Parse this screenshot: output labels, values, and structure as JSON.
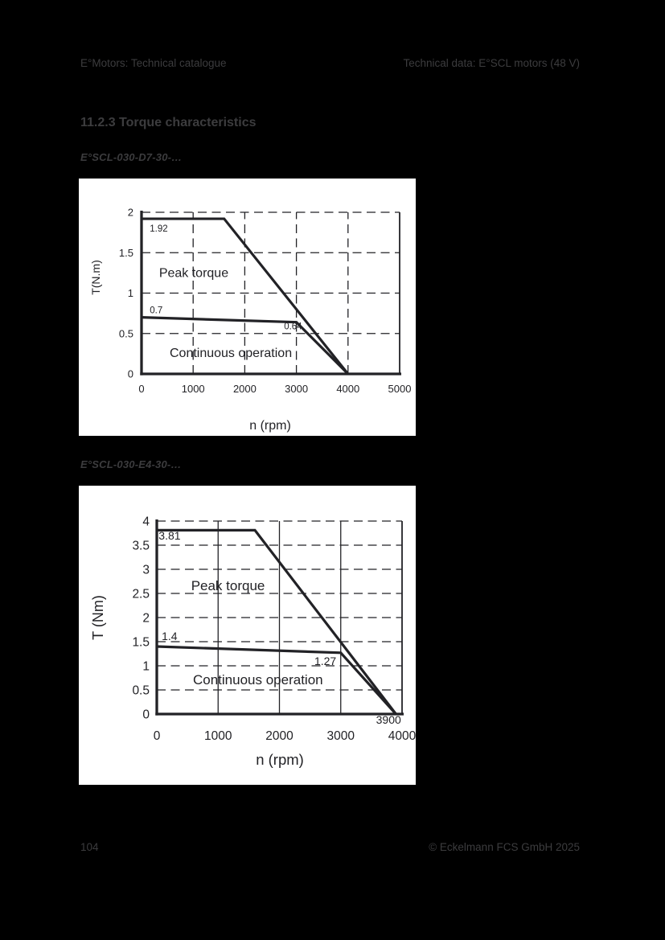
{
  "page": {
    "background": "#000000",
    "text_color": "#3c3c3e",
    "header": {
      "left": "E°Motors: Technical catalogue",
      "right": "Technical data: E°SCL motors (48 V)"
    },
    "section_title": "11.2.3 Torque characteristics",
    "footer": {
      "page_number": "104",
      "copyright": "© Eckelmann FCS GmbH 2025"
    }
  },
  "figures": [
    {
      "caption": "E°SCL-030-D7-30-…"
    },
    {
      "caption": "E°SCL-030-E4-30-…"
    }
  ],
  "chart_data": [
    {
      "type": "line",
      "title": "",
      "xlabel": "n (rpm)",
      "ylabel": "T(N.m)",
      "xlim": [
        0,
        5000
      ],
      "ylim": [
        0,
        2
      ],
      "xticks": [
        0,
        1000,
        2000,
        3000,
        4000,
        5000
      ],
      "yticks": [
        0,
        0.5,
        1,
        1.5,
        2
      ],
      "grid": {
        "horizontal": "dashed",
        "vertical": "dashed"
      },
      "legend": "none",
      "line_color": "#222226",
      "plot_background": "#ffffff",
      "series": [
        {
          "name": "Peak torque",
          "points": [
            [
              0,
              1.92
            ],
            [
              1600,
              1.92
            ],
            [
              4000,
              0
            ]
          ]
        },
        {
          "name": "Continuous operation",
          "points": [
            [
              0,
              0.7
            ],
            [
              3000,
              0.64
            ],
            [
              4000,
              0
            ]
          ]
        }
      ],
      "annotations": [
        {
          "text": "1.92",
          "x": 160,
          "y": 1.76,
          "anchor": "start",
          "size": "small"
        },
        {
          "text": "0.7",
          "x": 160,
          "y": 0.75,
          "anchor": "start",
          "size": "small"
        },
        {
          "text": "0.64",
          "x": 2760,
          "y": 0.55,
          "anchor": "start",
          "size": "small"
        },
        {
          "text": "Peak torque",
          "x": 340,
          "y": 1.2,
          "anchor": "start",
          "size": "large"
        },
        {
          "text": "Continuous operation",
          "x": 545,
          "y": 0.21,
          "anchor": "start",
          "size": "large"
        }
      ]
    },
    {
      "type": "line",
      "title": "",
      "xlabel": "n (rpm)",
      "ylabel": "T (Nm)",
      "xlim": [
        0,
        4000
      ],
      "ylim": [
        0,
        4
      ],
      "xticks": [
        0,
        1000,
        2000,
        3000,
        4000
      ],
      "yticks": [
        0,
        0.5,
        1,
        1.5,
        2,
        2.5,
        3,
        3.5,
        4
      ],
      "grid": {
        "horizontal": "dashed",
        "vertical": "solid"
      },
      "legend": "none",
      "line_color": "#222226",
      "plot_background": "#ffffff",
      "series": [
        {
          "name": "Peak torque",
          "points": [
            [
              0,
              3.81
            ],
            [
              1600,
              3.81
            ],
            [
              3900,
              0
            ]
          ]
        },
        {
          "name": "Continuous operation",
          "points": [
            [
              0,
              1.4
            ],
            [
              3000,
              1.27
            ],
            [
              3900,
              0
            ]
          ]
        }
      ],
      "annotations": [
        {
          "text": "3.81",
          "x": 30,
          "y": 3.62,
          "anchor": "start",
          "size": "small"
        },
        {
          "text": "1.4",
          "x": 80,
          "y": 1.53,
          "anchor": "start",
          "size": "small"
        },
        {
          "text": "1.27",
          "x": 2570,
          "y": 1.02,
          "anchor": "start",
          "size": "small"
        },
        {
          "text": "3900",
          "x": 3780,
          "y": -0.2,
          "anchor": "middle",
          "size": "small"
        },
        {
          "text": "Peak torque",
          "x": 560,
          "y": 2.57,
          "anchor": "start",
          "size": "large"
        },
        {
          "text": "Continuous operation",
          "x": 590,
          "y": 0.62,
          "anchor": "start",
          "size": "large"
        }
      ]
    }
  ]
}
